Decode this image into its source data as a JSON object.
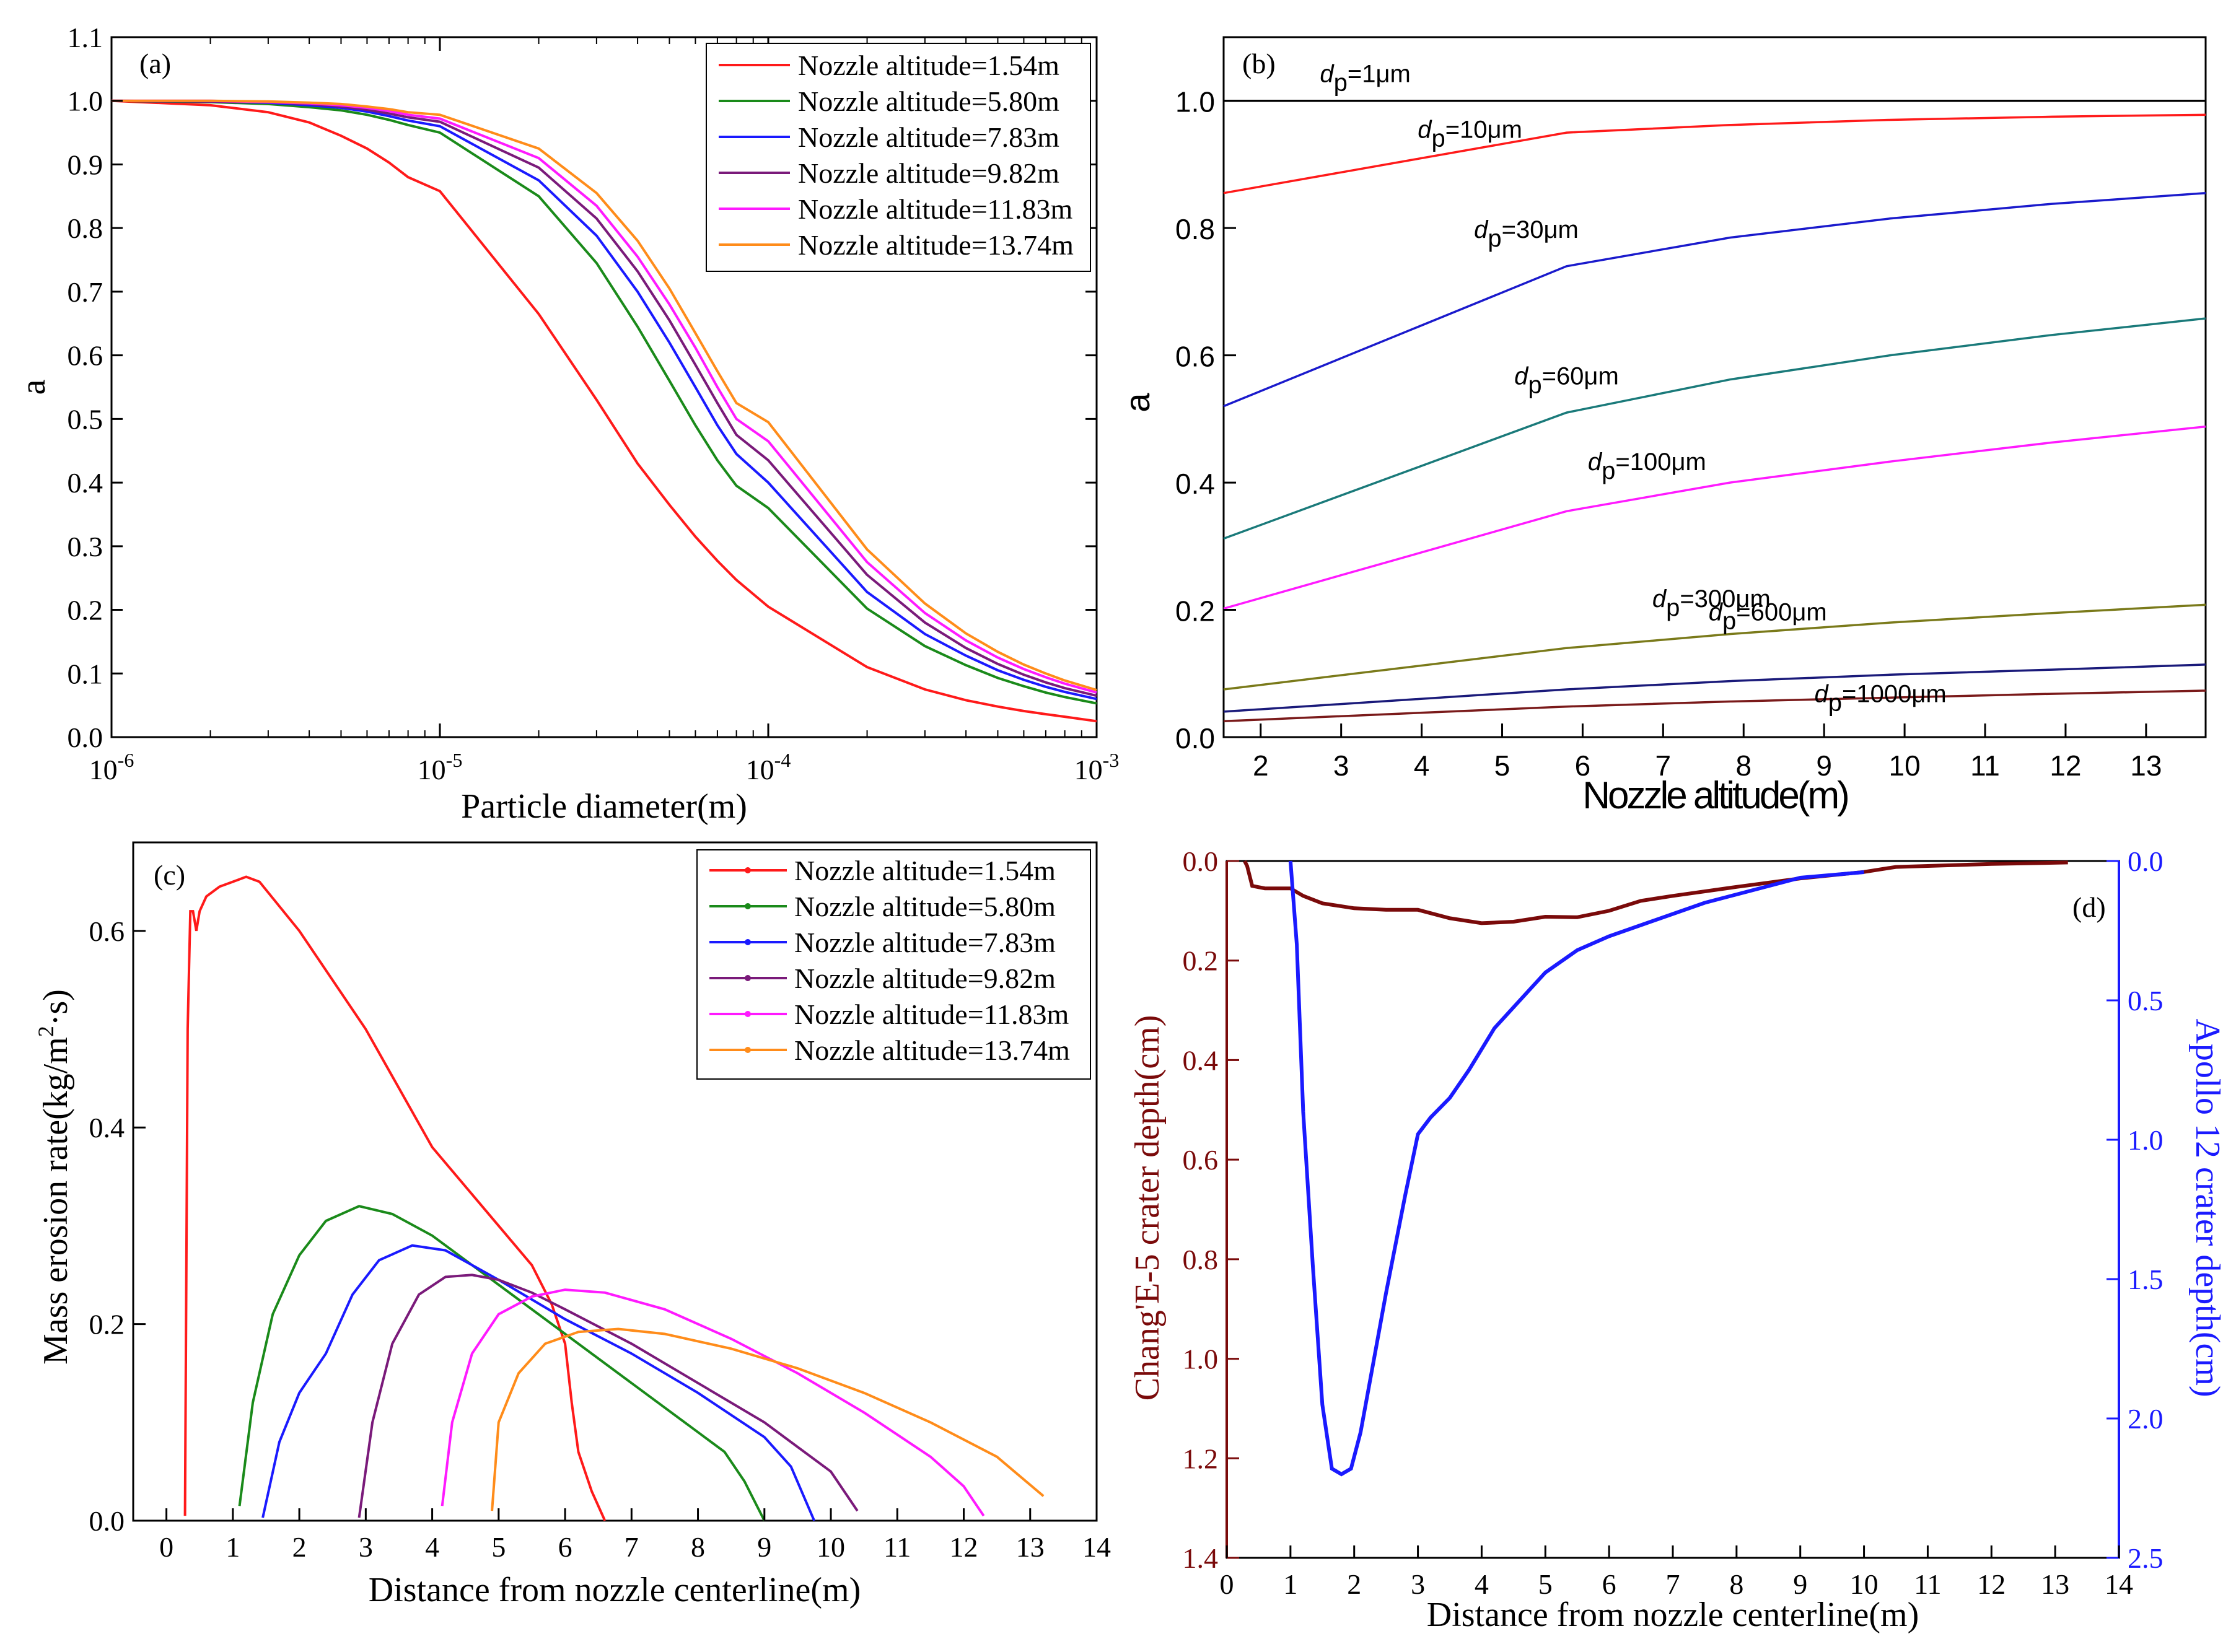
{
  "chart_data": [
    {
      "panel": "(a)",
      "type": "line",
      "xscale": "log",
      "xlabel": "Particle diameter(m)",
      "ylabel": "a",
      "xlim": [
        1e-06,
        0.001
      ],
      "ylim": [
        0,
        1.1
      ],
      "xticks": [
        {
          "value": 1e-06,
          "base": "10",
          "exp": "-6"
        },
        {
          "value": 1e-05,
          "base": "10",
          "exp": "-5"
        },
        {
          "value": 0.0001,
          "base": "10",
          "exp": "-4"
        },
        {
          "value": 0.001,
          "base": "10",
          "exp": "-3"
        }
      ],
      "yticks": [
        "0.0",
        "0.1",
        "0.2",
        "0.3",
        "0.4",
        "0.5",
        "0.6",
        "0.7",
        "0.8",
        "0.9",
        "1.0",
        "1.1"
      ],
      "legend_position": "top-right",
      "x": [
        1e-06,
        2e-06,
        3e-06,
        4e-06,
        5e-06,
        6e-06,
        7e-06,
        8e-06,
        1e-05,
        2e-05,
        3e-05,
        4e-05,
        5e-05,
        6e-05,
        7e-05,
        8e-05,
        0.0001,
        0.0002,
        0.0003,
        0.0004,
        0.0005,
        0.0006,
        0.0007,
        0.0008,
        0.001
      ],
      "series": [
        {
          "name": "Nozzle altitude=1.54m",
          "color": "#ff1a1a",
          "values": [
            1.0,
            0.993,
            0.982,
            0.966,
            0.945,
            0.925,
            0.903,
            0.88,
            0.858,
            0.665,
            0.53,
            0.43,
            0.365,
            0.315,
            0.277,
            0.247,
            0.205,
            0.11,
            0.075,
            0.058,
            0.048,
            0.041,
            0.036,
            0.032,
            0.025
          ]
        },
        {
          "name": "Nozzle altitude=5.80m",
          "color": "#1a8a1a",
          "values": [
            1.0,
            0.998,
            0.995,
            0.99,
            0.985,
            0.978,
            0.97,
            0.962,
            0.95,
            0.85,
            0.745,
            0.645,
            0.56,
            0.49,
            0.435,
            0.395,
            0.36,
            0.202,
            0.143,
            0.113,
            0.093,
            0.08,
            0.07,
            0.063,
            0.053
          ]
        },
        {
          "name": "Nozzle altitude=7.83m",
          "color": "#1a1aff",
          "values": [
            1.0,
            0.999,
            0.997,
            0.993,
            0.989,
            0.983,
            0.976,
            0.969,
            0.96,
            0.875,
            0.788,
            0.7,
            0.62,
            0.55,
            0.49,
            0.445,
            0.4,
            0.228,
            0.162,
            0.128,
            0.105,
            0.09,
            0.079,
            0.071,
            0.06
          ]
        },
        {
          "name": "Nozzle altitude=9.82m",
          "color": "#7a1a7a",
          "values": [
            1.0,
            0.999,
            0.998,
            0.995,
            0.991,
            0.986,
            0.98,
            0.974,
            0.967,
            0.895,
            0.815,
            0.732,
            0.655,
            0.585,
            0.525,
            0.475,
            0.435,
            0.255,
            0.18,
            0.14,
            0.115,
            0.098,
            0.086,
            0.077,
            0.065
          ]
        },
        {
          "name": "Nozzle altitude=11.83m",
          "color": "#ff1aff",
          "values": [
            1.0,
            1.0,
            0.998,
            0.996,
            0.993,
            0.989,
            0.984,
            0.978,
            0.972,
            0.91,
            0.835,
            0.755,
            0.68,
            0.612,
            0.55,
            0.5,
            0.465,
            0.275,
            0.195,
            0.152,
            0.125,
            0.107,
            0.094,
            0.084,
            0.07
          ]
        },
        {
          "name": "Nozzle altitude=13.74m",
          "color": "#ff8c1a",
          "values": [
            1.0,
            1.0,
            0.999,
            0.997,
            0.995,
            0.991,
            0.987,
            0.982,
            0.978,
            0.925,
            0.855,
            0.78,
            0.705,
            0.635,
            0.575,
            0.525,
            0.495,
            0.295,
            0.21,
            0.163,
            0.134,
            0.114,
            0.1,
            0.089,
            0.074
          ]
        }
      ]
    },
    {
      "panel": "(b)",
      "type": "line",
      "xlabel": "Nozzle altitude(m)",
      "ylabel": "a",
      "xlim": [
        1.54,
        13.74
      ],
      "ylim": [
        0,
        1.1
      ],
      "xticks": [
        "2",
        "3",
        "4",
        "5",
        "6",
        "7",
        "8",
        "9",
        "10",
        "11",
        "12",
        "13"
      ],
      "yticks": [
        "0.0",
        "0.2",
        "0.4",
        "0.6",
        "0.8",
        "1.0"
      ],
      "x": [
        1.54,
        5.8,
        7.83,
        9.82,
        11.83,
        13.74
      ],
      "series": [
        {
          "name": "1μm",
          "color": "#000000",
          "values": [
            1.0,
            1.0,
            1.0,
            1.0,
            1.0,
            1.0
          ]
        },
        {
          "name": "10μm",
          "color": "#ff1a1a",
          "values": [
            0.855,
            0.95,
            0.962,
            0.97,
            0.975,
            0.978
          ]
        },
        {
          "name": "30μm",
          "color": "#1a1acc",
          "values": [
            0.52,
            0.74,
            0.785,
            0.815,
            0.838,
            0.855
          ]
        },
        {
          "name": "60μm",
          "color": "#1a7a7a",
          "values": [
            0.312,
            0.51,
            0.562,
            0.6,
            0.632,
            0.658
          ]
        },
        {
          "name": "100μm",
          "color": "#ff1aff",
          "values": [
            0.202,
            0.355,
            0.4,
            0.433,
            0.463,
            0.488
          ]
        },
        {
          "name": "300μm",
          "color": "#7a7a1a",
          "values": [
            0.075,
            0.14,
            0.162,
            0.18,
            0.195,
            0.208
          ]
        },
        {
          "name": "600μm",
          "color": "#1a1a7a",
          "values": [
            0.04,
            0.075,
            0.088,
            0.098,
            0.106,
            0.114
          ]
        },
        {
          "name": "1000μm",
          "color": "#7a1a1a",
          "values": [
            0.025,
            0.048,
            0.056,
            0.062,
            0.068,
            0.073
          ]
        }
      ],
      "annotation_prefix": "d",
      "annotation_sub": "p",
      "annotation_eq": "="
    },
    {
      "panel": "(c)",
      "type": "line",
      "xlabel": "Distance from nozzle centerline(m)",
      "ylabel_pre": "Mass erosion rate(kg/m",
      "ylabel_sup": "2",
      "ylabel_post": "·s)",
      "xlim": [
        -0.5,
        14
      ],
      "ylim": [
        0,
        0.69
      ],
      "xticks": [
        "0",
        "1",
        "2",
        "3",
        "4",
        "5",
        "6",
        "7",
        "8",
        "9",
        "10",
        "11",
        "12",
        "13",
        "14"
      ],
      "yticks": [
        "0.0",
        "0.2",
        "0.4",
        "0.6"
      ],
      "legend_position": "top-right",
      "series": [
        {
          "name": "Nozzle altitude=1.54m",
          "color": "#ff1a1a",
          "x": [
            0.28,
            0.32,
            0.36,
            0.4,
            0.45,
            0.5,
            0.6,
            0.8,
            1.0,
            1.2,
            1.4,
            2.0,
            3.0,
            4.0,
            5.0,
            5.5,
            5.8,
            6.0,
            6.1,
            6.2,
            6.4,
            6.6
          ],
          "y": [
            0.005,
            0.5,
            0.62,
            0.62,
            0.6,
            0.62,
            0.635,
            0.645,
            0.65,
            0.655,
            0.65,
            0.6,
            0.5,
            0.38,
            0.3,
            0.26,
            0.22,
            0.18,
            0.12,
            0.07,
            0.03,
            0.0
          ]
        },
        {
          "name": "Nozzle altitude=5.80m",
          "color": "#1a8a1a",
          "x": [
            1.1,
            1.3,
            1.6,
            2.0,
            2.4,
            2.9,
            3.4,
            4.0,
            5.0,
            6.0,
            7.0,
            8.0,
            8.4,
            8.7,
            9.0
          ],
          "y": [
            0.015,
            0.12,
            0.21,
            0.27,
            0.305,
            0.32,
            0.312,
            0.29,
            0.24,
            0.19,
            0.14,
            0.09,
            0.07,
            0.04,
            0.0
          ]
        },
        {
          "name": "Nozzle altitude=7.83m",
          "color": "#1a1aff",
          "x": [
            1.45,
            1.7,
            2.0,
            2.4,
            2.8,
            3.2,
            3.7,
            4.2,
            5.0,
            6.0,
            7.0,
            8.0,
            9.0,
            9.4,
            9.75
          ],
          "y": [
            0.003,
            0.08,
            0.13,
            0.17,
            0.23,
            0.265,
            0.28,
            0.275,
            0.245,
            0.205,
            0.17,
            0.13,
            0.085,
            0.055,
            0.0
          ]
        },
        {
          "name": "Nozzle altitude=9.82m",
          "color": "#7a1a7a",
          "x": [
            2.9,
            3.1,
            3.4,
            3.8,
            4.2,
            4.6,
            5.0,
            5.5,
            6.0,
            7.0,
            8.0,
            9.0,
            10.0,
            10.4
          ],
          "y": [
            0.003,
            0.1,
            0.18,
            0.23,
            0.248,
            0.25,
            0.245,
            0.232,
            0.215,
            0.18,
            0.14,
            0.1,
            0.05,
            0.01
          ]
        },
        {
          "name": "Nozzle altitude=11.83m",
          "color": "#ff1aff",
          "x": [
            4.15,
            4.3,
            4.6,
            5.0,
            5.5,
            6.0,
            6.6,
            7.5,
            8.5,
            9.5,
            10.5,
            11.5,
            12.0,
            12.3
          ],
          "y": [
            0.015,
            0.1,
            0.17,
            0.21,
            0.228,
            0.235,
            0.232,
            0.215,
            0.185,
            0.15,
            0.11,
            0.065,
            0.035,
            0.005
          ]
        },
        {
          "name": "Nozzle altitude=13.74m",
          "color": "#ff8c1a",
          "x": [
            4.9,
            5.0,
            5.3,
            5.7,
            6.2,
            6.8,
            7.5,
            8.5,
            9.5,
            10.5,
            11.5,
            12.5,
            13.2
          ],
          "y": [
            0.01,
            0.1,
            0.15,
            0.18,
            0.192,
            0.195,
            0.19,
            0.175,
            0.155,
            0.13,
            0.1,
            0.065,
            0.025
          ]
        }
      ]
    },
    {
      "panel": "(d)",
      "type": "line",
      "xlabel": "Distance from nozzle centerline(m)",
      "ylabel_left": "Chang'E-5 crater depth(cm)",
      "ylabel_right": "Apollo 12 crater depth(cm)",
      "xlim": [
        0,
        14
      ],
      "ylim_left": [
        0,
        1.4
      ],
      "ylim_right": [
        0,
        2.5
      ],
      "xticks": [
        "0",
        "1",
        "2",
        "3",
        "4",
        "5",
        "6",
        "7",
        "8",
        "9",
        "10",
        "11",
        "12",
        "13",
        "14"
      ],
      "yticks_left": [
        "0.0",
        "0.2",
        "0.4",
        "0.6",
        "0.8",
        "1.0",
        "1.2",
        "1.4"
      ],
      "yticks_right": [
        "0.0",
        "0.5",
        "1.0",
        "1.5",
        "2.0",
        "2.5"
      ],
      "y_inverted": true,
      "series": [
        {
          "name": "Chang'E-5",
          "axis": "left",
          "color": "#7a0a0a",
          "x": [
            0.28,
            0.32,
            0.4,
            0.6,
            1.0,
            1.2,
            1.5,
            2.0,
            2.5,
            3.0,
            3.5,
            4.0,
            4.5,
            5.0,
            5.5,
            6.0,
            6.5,
            7.0,
            8.0,
            9.0,
            10.0,
            10.5,
            11.0,
            12.0,
            13.2
          ],
          "y": [
            0.0,
            0.01,
            0.05,
            0.055,
            0.055,
            0.07,
            0.085,
            0.095,
            0.098,
            0.098,
            0.115,
            0.125,
            0.122,
            0.112,
            0.113,
            0.1,
            0.08,
            0.07,
            0.052,
            0.035,
            0.022,
            0.012,
            0.01,
            0.006,
            0.003
          ]
        },
        {
          "name": "Apollo 12",
          "axis": "right",
          "color": "#1a1aff",
          "x": [
            1.0,
            1.1,
            1.2,
            1.35,
            1.5,
            1.65,
            1.8,
            1.95,
            2.1,
            2.3,
            2.5,
            2.8,
            3.0,
            3.2,
            3.5,
            3.8,
            4.2,
            4.6,
            5.0,
            5.5,
            6.0,
            6.5,
            7.0,
            7.5,
            8.0,
            8.5,
            9.0,
            9.5,
            10.0
          ],
          "y": [
            0.0,
            0.3,
            0.9,
            1.45,
            1.95,
            2.18,
            2.2,
            2.18,
            2.05,
            1.8,
            1.55,
            1.2,
            0.98,
            0.92,
            0.85,
            0.75,
            0.6,
            0.5,
            0.4,
            0.32,
            0.27,
            0.23,
            0.19,
            0.15,
            0.12,
            0.09,
            0.06,
            0.05,
            0.04
          ]
        }
      ]
    }
  ]
}
